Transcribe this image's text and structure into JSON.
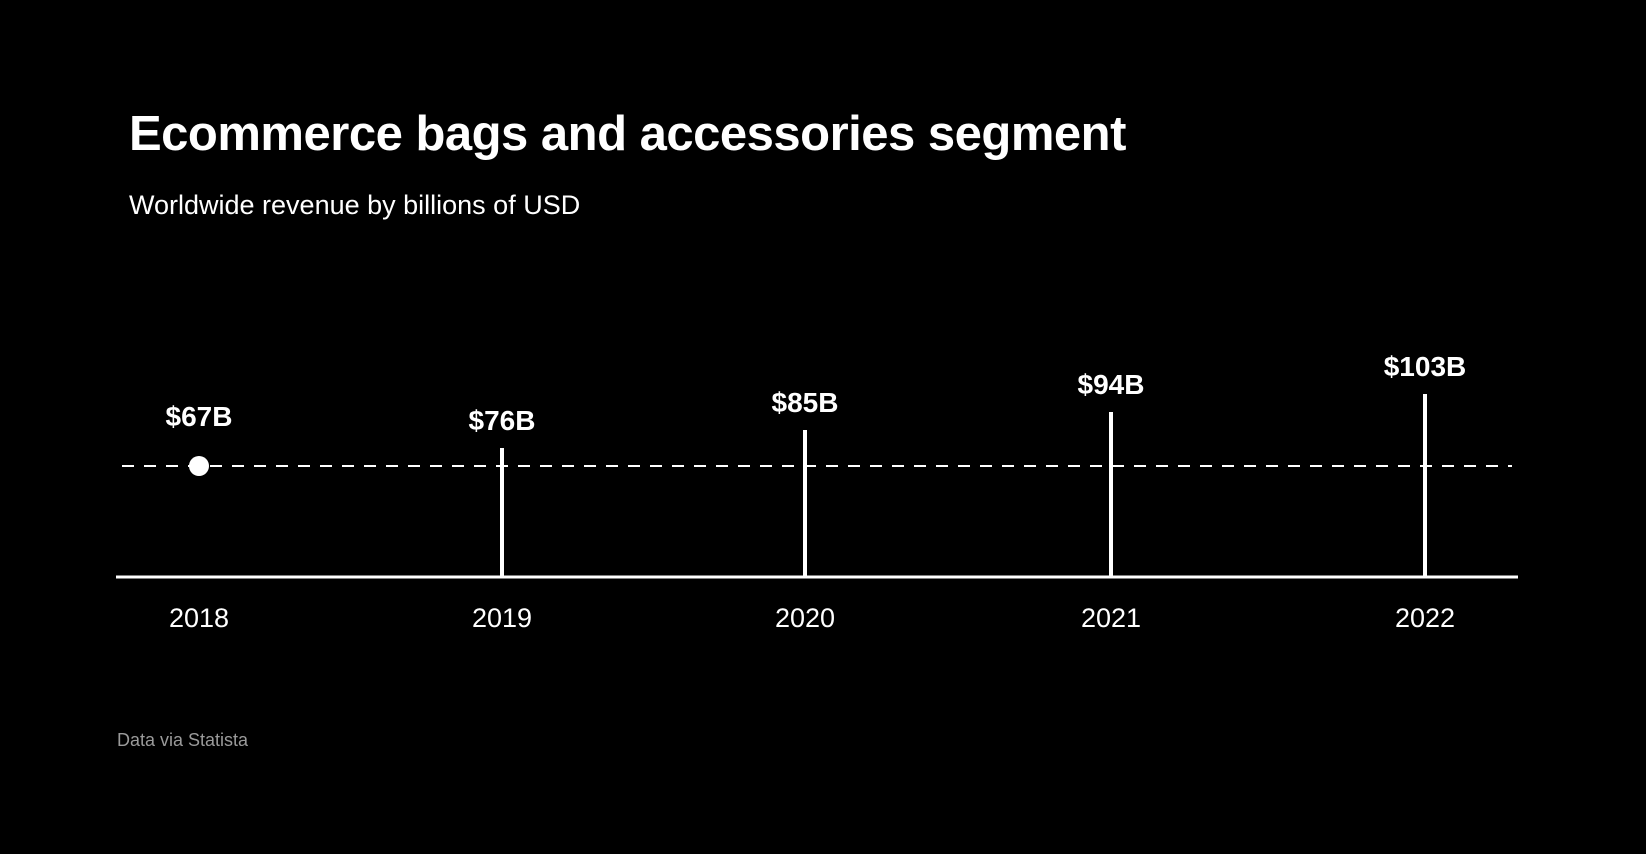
{
  "colors": {
    "background": "#000000",
    "foreground": "#ffffff",
    "source_text": "#9a9a9a"
  },
  "chart_data": {
    "type": "bar",
    "title": "Ecommerce bags and accessories segment",
    "subtitle": "Worldwide revenue by billions of USD",
    "source": "Data via Statista",
    "categories": [
      "2018",
      "2019",
      "2020",
      "2021",
      "2022"
    ],
    "values": [
      67,
      76,
      85,
      94,
      103
    ],
    "value_labels": [
      "$67B",
      "$76B",
      "$85B",
      "$94B",
      "$103B"
    ],
    "reference_value": 67,
    "reference_style": "dashed",
    "xlabel": "",
    "ylabel": "",
    "unit": "billions of USD"
  }
}
